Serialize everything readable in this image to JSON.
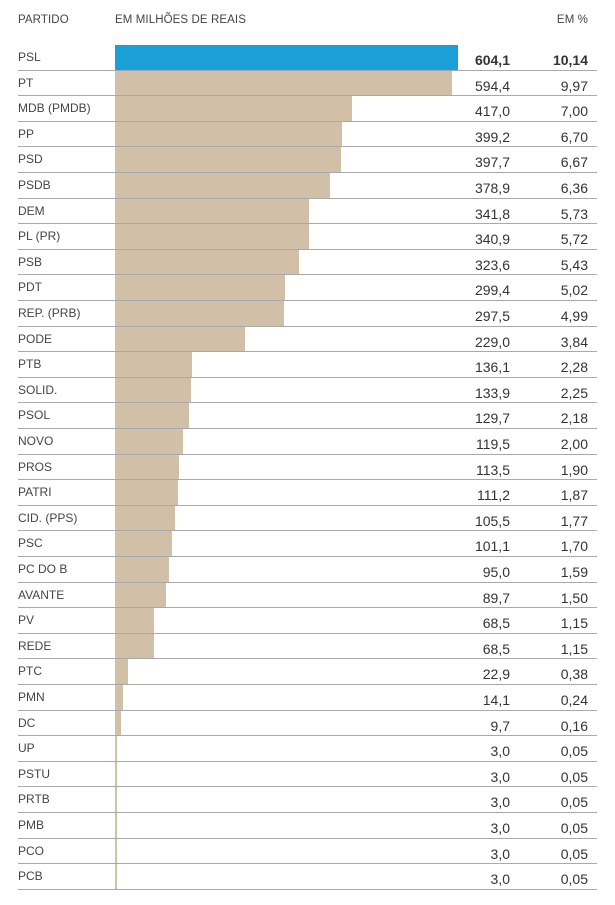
{
  "header": {
    "party": "PARTIDO",
    "value": "EM MILHÕES DE REAIS",
    "percent": "EM %"
  },
  "colors": {
    "highlight": "#1a9fd9",
    "bar": "#d2bfa8",
    "separator": "#a9a9a9"
  },
  "chart_data": {
    "type": "bar",
    "orientation": "horizontal",
    "highlight_first": true,
    "rows": [
      {
        "party": "PSL",
        "value": 604.1,
        "value_label": "604,1",
        "percent_label": "10,14"
      },
      {
        "party": "PT",
        "value": 594.4,
        "value_label": "594,4",
        "percent_label": "9,97"
      },
      {
        "party": "MDB (PMDB)",
        "value": 417.0,
        "value_label": "417,0",
        "percent_label": "7,00"
      },
      {
        "party": "PP",
        "value": 399.2,
        "value_label": "399,2",
        "percent_label": "6,70"
      },
      {
        "party": "PSD",
        "value": 397.7,
        "value_label": "397,7",
        "percent_label": "6,67"
      },
      {
        "party": "PSDB",
        "value": 378.9,
        "value_label": "378,9",
        "percent_label": "6,36"
      },
      {
        "party": "DEM",
        "value": 341.8,
        "value_label": "341,8",
        "percent_label": "5,73"
      },
      {
        "party": "PL (PR)",
        "value": 340.9,
        "value_label": "340,9",
        "percent_label": "5,72"
      },
      {
        "party": "PSB",
        "value": 323.6,
        "value_label": "323,6",
        "percent_label": "5,43"
      },
      {
        "party": "PDT",
        "value": 299.4,
        "value_label": "299,4",
        "percent_label": "5,02"
      },
      {
        "party": "REP. (PRB)",
        "value": 297.5,
        "value_label": "297,5",
        "percent_label": "4,99"
      },
      {
        "party": "PODE",
        "value": 229.0,
        "value_label": "229,0",
        "percent_label": "3,84"
      },
      {
        "party": "PTB",
        "value": 136.1,
        "value_label": "136,1",
        "percent_label": "2,28"
      },
      {
        "party": "SOLID.",
        "value": 133.9,
        "value_label": "133,9",
        "percent_label": "2,25"
      },
      {
        "party": "PSOL",
        "value": 129.7,
        "value_label": "129,7",
        "percent_label": "2,18"
      },
      {
        "party": "NOVO",
        "value": 119.5,
        "value_label": "119,5",
        "percent_label": "2,00"
      },
      {
        "party": "PROS",
        "value": 113.5,
        "value_label": "113,5",
        "percent_label": "1,90"
      },
      {
        "party": "PATRI",
        "value": 111.2,
        "value_label": "111,2",
        "percent_label": "1,87"
      },
      {
        "party": "CID. (PPS)",
        "value": 105.5,
        "value_label": "105,5",
        "percent_label": "1,77"
      },
      {
        "party": "PSC",
        "value": 101.1,
        "value_label": "101,1",
        "percent_label": "1,70"
      },
      {
        "party": "PC DO B",
        "value": 95.0,
        "value_label": "95,0",
        "percent_label": "1,59"
      },
      {
        "party": "AVANTE",
        "value": 89.7,
        "value_label": "89,7",
        "percent_label": "1,50"
      },
      {
        "party": "PV",
        "value": 68.5,
        "value_label": "68,5",
        "percent_label": "1,15"
      },
      {
        "party": "REDE",
        "value": 68.5,
        "value_label": "68,5",
        "percent_label": "1,15"
      },
      {
        "party": "PTC",
        "value": 22.9,
        "value_label": "22,9",
        "percent_label": "0,38"
      },
      {
        "party": "PMN",
        "value": 14.1,
        "value_label": "14,1",
        "percent_label": "0,24"
      },
      {
        "party": "DC",
        "value": 9.7,
        "value_label": "9,7",
        "percent_label": "0,16"
      },
      {
        "party": "UP",
        "value": 3.0,
        "value_label": "3,0",
        "percent_label": "0,05"
      },
      {
        "party": "PSTU",
        "value": 3.0,
        "value_label": "3,0",
        "percent_label": "0,05"
      },
      {
        "party": "PRTB",
        "value": 3.0,
        "value_label": "3,0",
        "percent_label": "0,05"
      },
      {
        "party": "PMB",
        "value": 3.0,
        "value_label": "3,0",
        "percent_label": "0,05"
      },
      {
        "party": "PCO",
        "value": 3.0,
        "value_label": "3,0",
        "percent_label": "0,05"
      },
      {
        "party": "PCB",
        "value": 3.0,
        "value_label": "3,0",
        "percent_label": "0,05"
      }
    ]
  }
}
